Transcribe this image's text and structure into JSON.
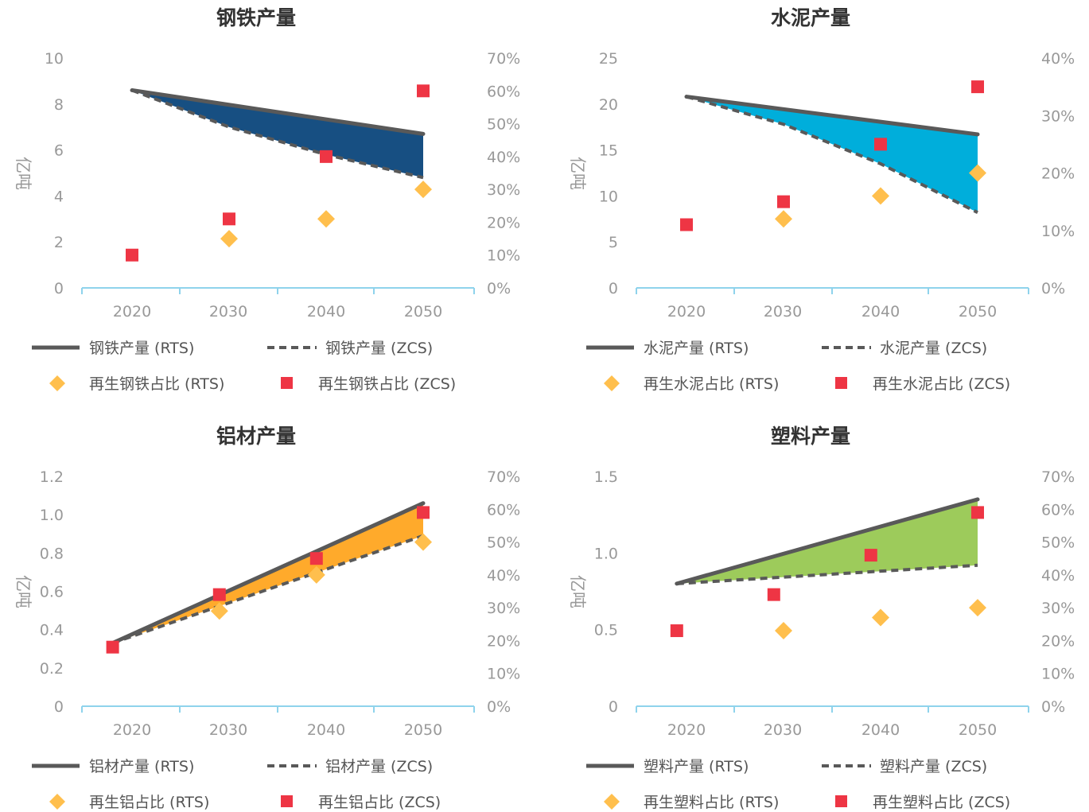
{
  "chart_data": [
    {
      "type": "line",
      "title": "钢铁产量",
      "ylabel": "亿吨",
      "x": [
        "2020",
        "2030",
        "2040",
        "2050"
      ],
      "ylim": [
        0,
        10
      ],
      "yticks": [
        "0",
        "2",
        "4",
        "6",
        "8",
        "10"
      ],
      "y2lim": [
        0,
        70
      ],
      "y2ticks": [
        "0%",
        "10%",
        "20%",
        "30%",
        "40%",
        "50%",
        "60%",
        "70%"
      ],
      "fill_color": "#174F82",
      "line_series": [
        {
          "name": "钢铁产量 (RTS)",
          "style": "solid",
          "x": [
            2020,
            2050
          ],
          "values": [
            8.6,
            6.7
          ]
        },
        {
          "name": "钢铁产量 (ZCS)",
          "style": "dashed",
          "x": [
            2020,
            2030,
            2040,
            2050
          ],
          "values": [
            8.6,
            7.0,
            5.8,
            4.8
          ]
        }
      ],
      "marker_series": [
        {
          "name": "再生钢铁占比 (RTS)",
          "marker": "diamond",
          "x": [
            2030,
            2040,
            2050
          ],
          "values": [
            15,
            21,
            30
          ]
        },
        {
          "name": "再生钢铁占比 (ZCS)",
          "marker": "square",
          "x": [
            2020,
            2030,
            2040,
            2050
          ],
          "values": [
            10,
            21,
            40,
            60
          ]
        }
      ]
    },
    {
      "type": "line",
      "title": "水泥产量",
      "ylabel": "亿吨",
      "x": [
        "2020",
        "2030",
        "2040",
        "2050"
      ],
      "ylim": [
        0,
        25
      ],
      "yticks": [
        "0",
        "5",
        "10",
        "15",
        "20",
        "25"
      ],
      "y2lim": [
        0,
        40
      ],
      "y2ticks": [
        "0%",
        "10%",
        "20%",
        "30%",
        "40%"
      ],
      "fill_color": "#00AEDB",
      "line_series": [
        {
          "name": "水泥产量 (RTS)",
          "style": "solid",
          "x": [
            2020,
            2050
          ],
          "values": [
            20.8,
            16.7
          ]
        },
        {
          "name": "水泥产量 (ZCS)",
          "style": "dashed",
          "x": [
            2020,
            2030,
            2040,
            2050
          ],
          "values": [
            20.8,
            17.8,
            13.5,
            8.2
          ]
        }
      ],
      "marker_series": [
        {
          "name": "再生水泥占比 (RTS)",
          "marker": "diamond",
          "x": [
            2030,
            2040,
            2050
          ],
          "values": [
            12,
            16,
            20
          ]
        },
        {
          "name": "再生水泥占比 (ZCS)",
          "marker": "square",
          "x": [
            2020,
            2030,
            2040,
            2050
          ],
          "values": [
            11,
            15,
            25,
            35
          ]
        }
      ]
    },
    {
      "type": "line",
      "title": "铝材产量",
      "ylabel": "亿吨",
      "x": [
        "2020",
        "2030",
        "2040",
        "2050"
      ],
      "ylim": [
        0,
        1.2
      ],
      "yticks": [
        "0",
        "0.2",
        "0.4",
        "0.6",
        "0.8",
        "1.0",
        "1.2"
      ],
      "y2lim": [
        0,
        70
      ],
      "y2ticks": [
        "0%",
        "10%",
        "20%",
        "30%",
        "40%",
        "50%",
        "60%",
        "70%"
      ],
      "fill_color": "#FFAA2B",
      "line_series": [
        {
          "name": "铝材产量 (RTS)",
          "style": "solid",
          "x": [
            2018,
            2050
          ],
          "values": [
            0.33,
            1.06
          ]
        },
        {
          "name": "铝材产量 (ZCS)",
          "style": "dashed",
          "x": [
            2018,
            2050
          ],
          "values": [
            0.33,
            0.89
          ]
        }
      ],
      "marker_series": [
        {
          "name": "再生铝占比 (RTS)",
          "marker": "diamond",
          "x": [
            2029,
            2039,
            2050
          ],
          "values": [
            29,
            40,
            50
          ]
        },
        {
          "name": "再生铝占比 (ZCS)",
          "marker": "square",
          "x": [
            2018,
            2029,
            2039,
            2050
          ],
          "values": [
            18,
            34,
            45,
            59
          ]
        }
      ]
    },
    {
      "type": "line",
      "title": "塑料产量",
      "ylabel": "亿吨",
      "x": [
        "2020",
        "2030",
        "2040",
        "2050"
      ],
      "ylim": [
        0,
        1.5
      ],
      "yticks": [
        "0",
        "0.5",
        "1.0",
        "1.5"
      ],
      "y2lim": [
        0,
        70
      ],
      "y2ticks": [
        "0%",
        "10%",
        "20%",
        "30%",
        "40%",
        "50%",
        "60%",
        "70%"
      ],
      "fill_color": "#9DCB5B",
      "line_series": [
        {
          "name": "塑料产量 (RTS)",
          "style": "solid",
          "x": [
            2019,
            2050
          ],
          "values": [
            0.8,
            1.35
          ]
        },
        {
          "name": "塑料产量 (ZCS)",
          "style": "dashed",
          "x": [
            2019,
            2050
          ],
          "values": [
            0.8,
            0.92
          ]
        }
      ],
      "marker_series": [
        {
          "name": "再生塑料占比 (RTS)",
          "marker": "diamond",
          "x": [
            2030,
            2040,
            2050
          ],
          "values": [
            23,
            27,
            30
          ]
        },
        {
          "name": "再生塑料占比 (ZCS)",
          "marker": "square",
          "x": [
            2019,
            2029,
            2039,
            2050
          ],
          "values": [
            23,
            34,
            46,
            59
          ]
        }
      ]
    }
  ],
  "colors": {
    "rts_line": "#595959",
    "zcs_line": "#595959",
    "diamond": "#FFBF4D",
    "square": "#EE3544",
    "axis": "#8FD3EC"
  }
}
